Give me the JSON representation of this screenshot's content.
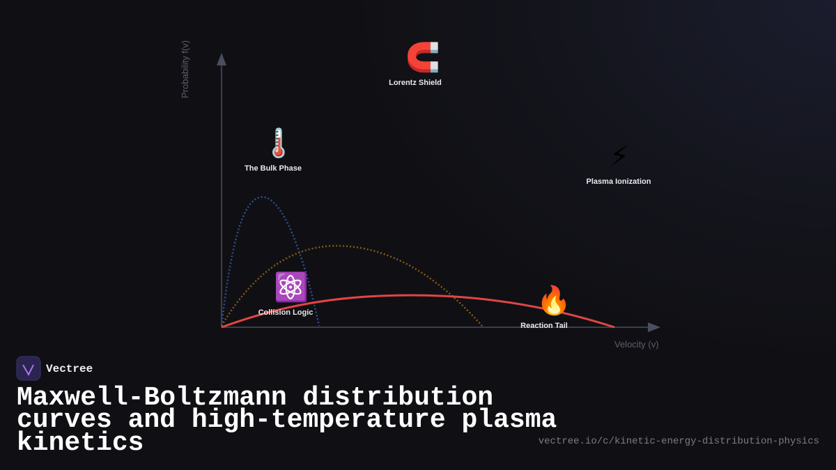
{
  "diagram": {
    "axes": {
      "y_label": "Probability f(v)",
      "x_label": "Velocity (v)"
    },
    "nodes": [
      {
        "icon": "🧲",
        "label": "Lorentz Shield"
      },
      {
        "icon": "🌡️",
        "label": "The Bulk Phase"
      },
      {
        "icon": "⚡",
        "label": "Plasma Ionization"
      },
      {
        "icon": "⚛️",
        "label": "Collision Logic"
      },
      {
        "icon": "🔥",
        "label": "Reaction Tail"
      }
    ]
  },
  "footer": {
    "brand": "Vectree",
    "title": [
      "Maxwell-Boltzmann distribution",
      "curves and high-temperature plasma",
      "kinetics"
    ],
    "url": "vectree.io/c/kinetic-energy-distribution-physics"
  }
}
